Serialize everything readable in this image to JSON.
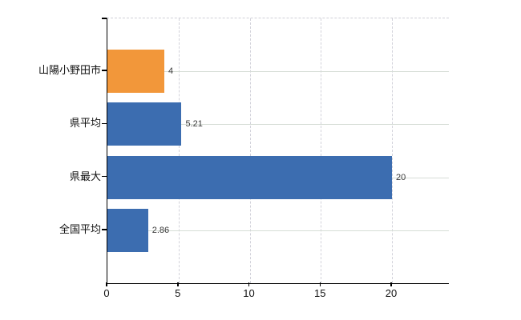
{
  "chart_data": {
    "type": "bar",
    "orientation": "horizontal",
    "title": "",
    "categories": [
      "山陽小野田市",
      "県平均",
      "県最大",
      "全国平均"
    ],
    "values": [
      4,
      5.21,
      20,
      2.86
    ],
    "value_labels": [
      "4",
      "5.21",
      "20",
      "2.86"
    ],
    "bar_colors": [
      "#f2973a",
      "#3c6db0",
      "#3c6db0",
      "#3c6db0"
    ],
    "x_tick_values": [
      0,
      5,
      10,
      15,
      20
    ],
    "x_tick_labels": [
      "0",
      "5",
      "10",
      "15",
      "20"
    ],
    "xlim": [
      0,
      24
    ],
    "grid": {
      "vertical": "dashed",
      "horizontal": "solid",
      "top_border": "dashed"
    },
    "legend": "none"
  },
  "colors": {
    "highlight_bar": "#f2973a",
    "default_bar": "#3c6db0",
    "axis": "#000000",
    "grid_vertical": "#d2d2da",
    "grid_horizontal": "#d6ddd6",
    "value_text": "#3a3a3a",
    "label_text": "#111111",
    "background": "#ffffff"
  }
}
